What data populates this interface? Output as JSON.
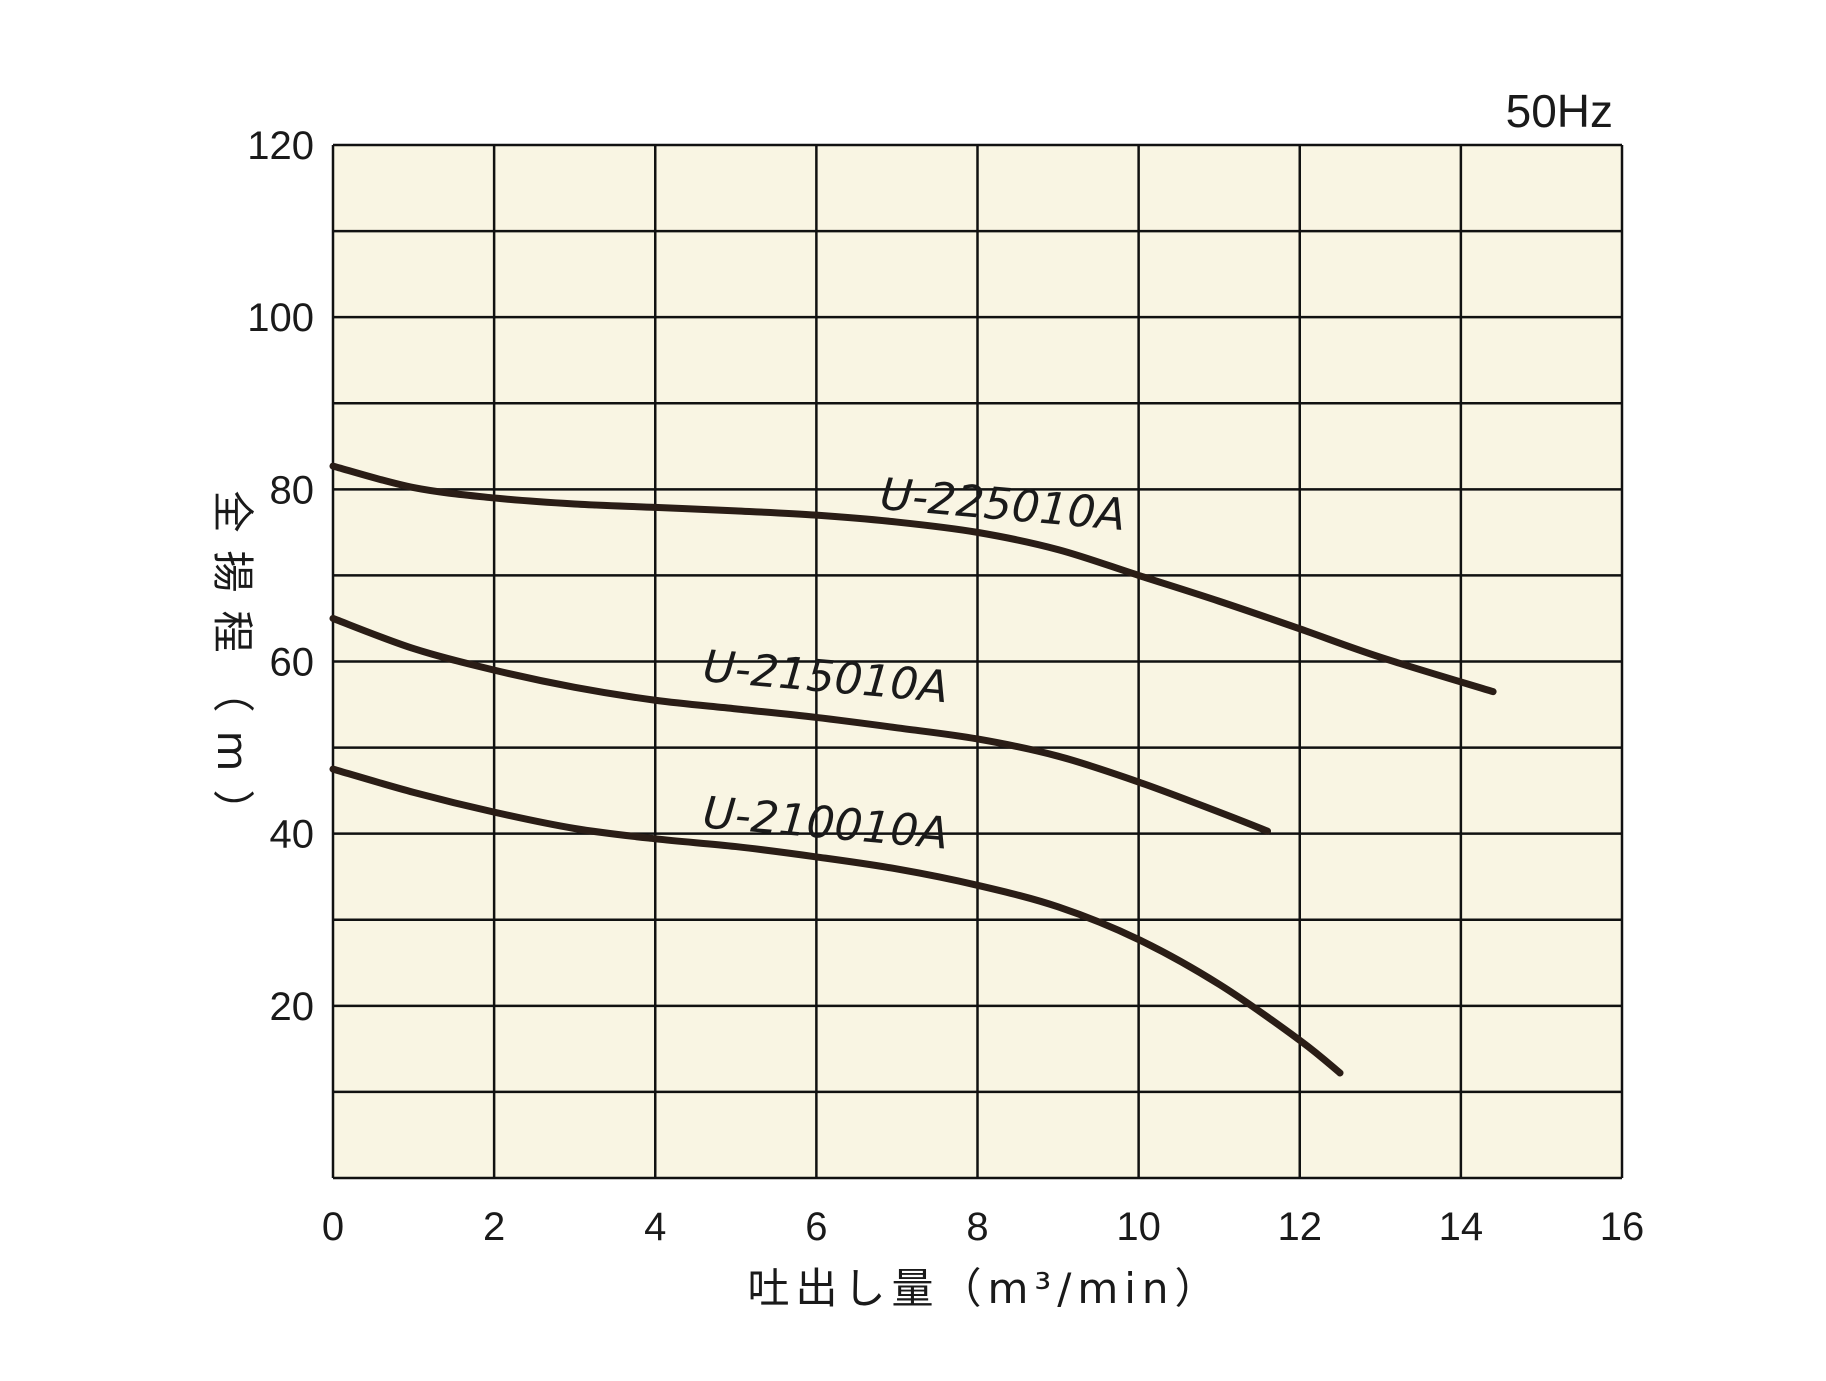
{
  "chart_data": {
    "type": "line",
    "frequency_label": "50Hz",
    "xlabel": "吐出し量（m³/min）",
    "ylabel": "全揚程（m）",
    "xlim": [
      0,
      16
    ],
    "ylim": [
      0,
      120
    ],
    "x_ticks": [
      0,
      2,
      4,
      6,
      8,
      10,
      12,
      14,
      16
    ],
    "y_ticks": [
      20,
      40,
      60,
      80,
      100,
      120
    ],
    "grid": true,
    "plot_background": "#f9f5e3",
    "line_color": "#2a1d16",
    "series": [
      {
        "name": "U-225010A",
        "x": [
          0,
          1,
          2,
          3,
          4,
          5,
          6,
          7,
          8,
          9,
          10,
          11,
          12,
          13,
          14.4
        ],
        "y": [
          82.7,
          80.2,
          79,
          78.3,
          77.9,
          77.5,
          77,
          76.2,
          75,
          73,
          70,
          67,
          63.8,
          60.5,
          56.5
        ],
        "label_at": [
          8.3,
          76.5
        ]
      },
      {
        "name": "U-215010A",
        "x": [
          0,
          1,
          2,
          3,
          4,
          5,
          6,
          7,
          8,
          9,
          10,
          11,
          11.6
        ],
        "y": [
          65,
          61.5,
          59,
          57,
          55.5,
          54.5,
          53.5,
          52.3,
          51,
          49,
          46,
          42.5,
          40.3
        ],
        "label_at": [
          6.1,
          56.5
        ]
      },
      {
        "name": "U-210010A",
        "x": [
          0,
          1,
          2,
          3,
          4,
          5,
          6,
          7,
          8,
          9,
          10,
          11,
          12,
          12.5
        ],
        "y": [
          47.5,
          44.8,
          42.5,
          40.6,
          39.4,
          38.5,
          37.3,
          35.9,
          34,
          31.5,
          27.7,
          22.5,
          16,
          12.2
        ],
        "label_at": [
          6.1,
          39.5
        ]
      }
    ]
  }
}
